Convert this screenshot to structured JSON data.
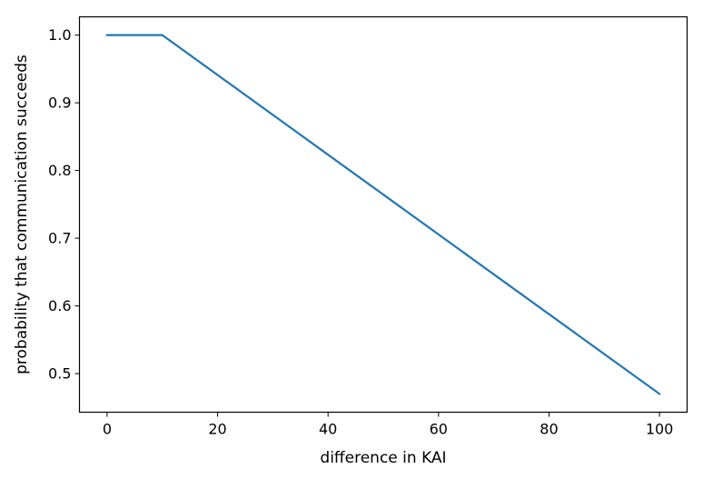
{
  "chart_data": {
    "type": "line",
    "title": "",
    "xlabel": "difference in KAI",
    "ylabel": "probability that communication succeeds",
    "xlim": [
      -5,
      105
    ],
    "ylim": [
      0.443,
      1.027
    ],
    "xticks": [
      0,
      20,
      40,
      60,
      80,
      100
    ],
    "xtick_labels": [
      "0",
      "20",
      "40",
      "60",
      "80",
      "100"
    ],
    "yticks": [
      0.5,
      0.6,
      0.7,
      0.8,
      0.9,
      1.0
    ],
    "ytick_labels": [
      "0.5",
      "0.6",
      "0.7",
      "0.8",
      "0.9",
      "1.0"
    ],
    "grid": false,
    "legend": "none",
    "series": [
      {
        "color": "#1f77b4",
        "x": [
          0,
          10,
          100
        ],
        "y": [
          1.0,
          1.0,
          0.47
        ]
      }
    ]
  }
}
